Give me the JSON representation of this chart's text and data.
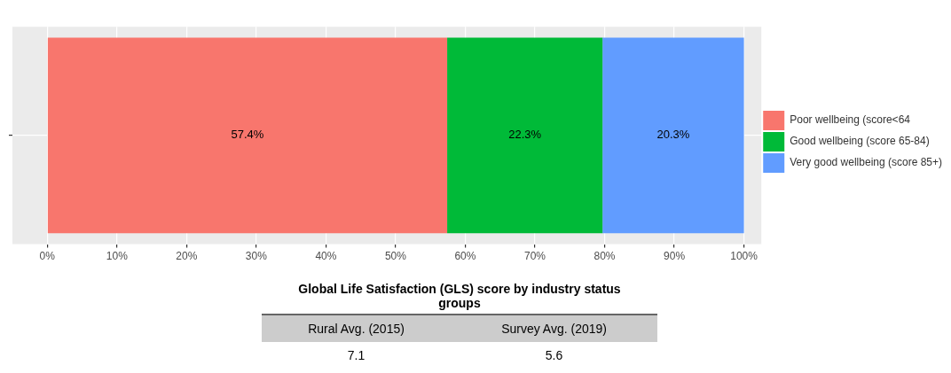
{
  "chart_data": [
    {
      "type": "bar",
      "orientation": "horizontal",
      "stacked": true,
      "categories": [
        null
      ],
      "series": [
        {
          "name": "Poor wellbeing (score<64",
          "color": "#f8766d",
          "values": [
            57.4
          ],
          "value_labels": [
            "57.4%"
          ]
        },
        {
          "name": "Good wellbeing (score 65-84)",
          "color": "#00ba38",
          "values": [
            22.3
          ],
          "value_labels": [
            "22.3%"
          ]
        },
        {
          "name": "Very good wellbeing (score 85+)",
          "color": "#619cff",
          "values": [
            20.3
          ],
          "value_labels": [
            "20.3%"
          ]
        }
      ],
      "xlim": [
        -5,
        102.5
      ],
      "xticks": [
        {
          "value": 0,
          "label": "0%"
        },
        {
          "value": 10,
          "label": "10%"
        },
        {
          "value": 20,
          "label": "20%"
        },
        {
          "value": 30,
          "label": "30%"
        },
        {
          "value": 40,
          "label": "40%"
        },
        {
          "value": 50,
          "label": "50%"
        },
        {
          "value": 60,
          "label": "60%"
        },
        {
          "value": 70,
          "label": "70%"
        },
        {
          "value": 80,
          "label": "80%"
        },
        {
          "value": 90,
          "label": "90%"
        },
        {
          "value": 100,
          "label": "100%"
        }
      ],
      "grid": true,
      "legend": "right"
    },
    {
      "type": "other",
      "title": "Global Life Satisfaction (GLS) score by industry status groups",
      "categories": [
        "Rural Avg. (2015)",
        "Survey Avg. (2019)"
      ],
      "annotations": [
        "7.1",
        "5.6"
      ]
    }
  ]
}
